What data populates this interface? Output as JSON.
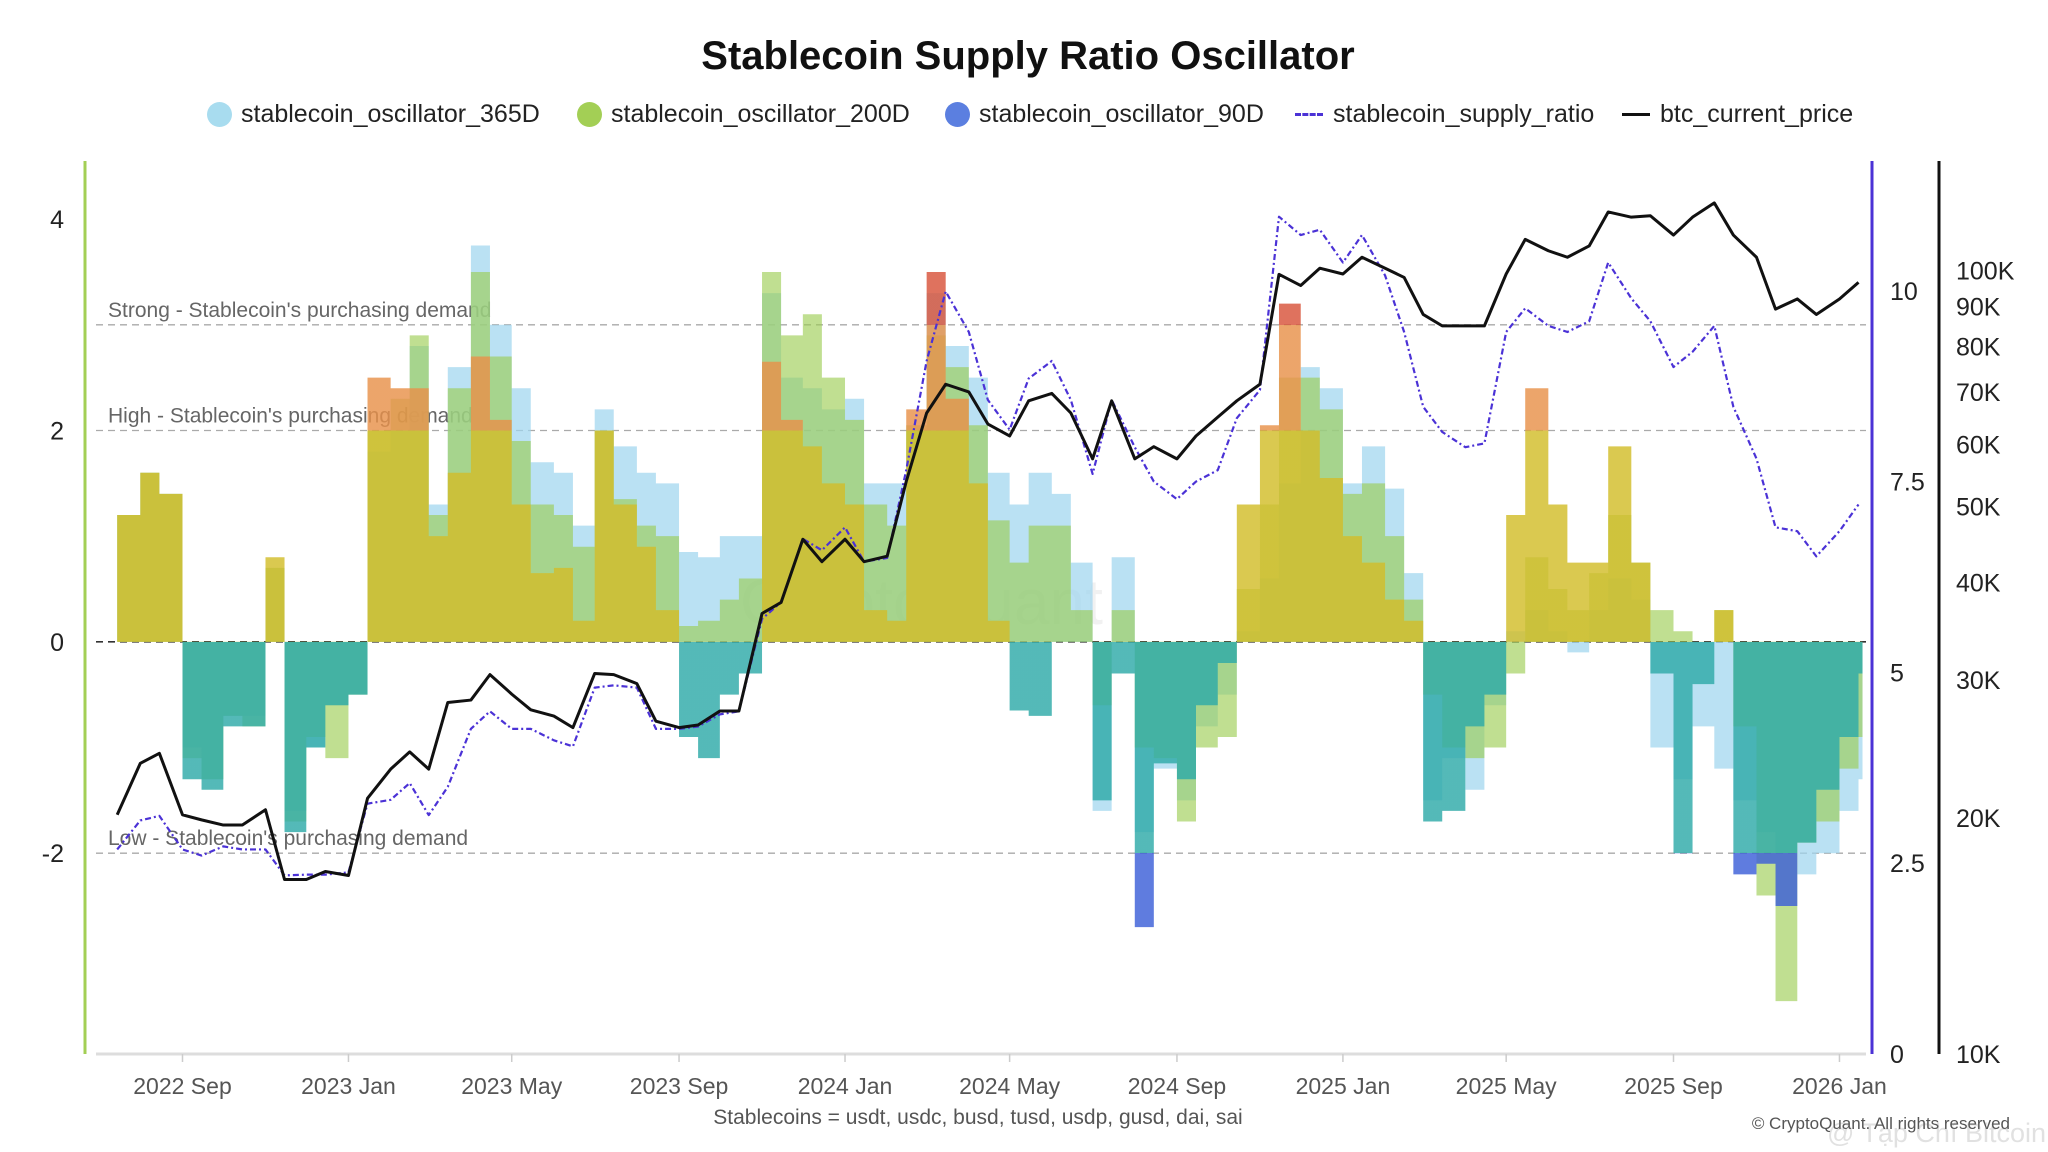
{
  "title": "Stablecoin Supply Ratio Oscillator",
  "legend": [
    {
      "label": "stablecoin_oscillator_365D",
      "marker": "dot",
      "color": "#a8dcef"
    },
    {
      "label": "stablecoin_oscillator_200D",
      "marker": "dot",
      "color": "#a3cf55"
    },
    {
      "label": "stablecoin_oscillator_90D",
      "marker": "dot",
      "color": "#5b7fe0"
    },
    {
      "label": "stablecoin_supply_ratio",
      "marker": "dash-dot-line",
      "color": "#4b32d6"
    },
    {
      "label": "btc_current_price",
      "marker": "line",
      "color": "#111111"
    }
  ],
  "footnote": "Stablecoins = usdt, usdc, busd, tusd, usdp, gusd, dai, sai",
  "copyright": "© CryptoQuant. All rights reserved",
  "watermarks": [
    "CryptoQuant",
    "@ Tạp Chí Bitcoin"
  ],
  "chart_data": {
    "type": "area",
    "title": "Stablecoin Supply Ratio Oscillator",
    "legend_position": "top",
    "grid": false,
    "x": [
      "2022-07-15",
      "2022-08-01",
      "2022-08-15",
      "2022-09-01",
      "2022-09-15",
      "2022-10-01",
      "2022-10-15",
      "2022-11-01",
      "2022-11-15",
      "2022-12-01",
      "2022-12-15",
      "2023-01-01",
      "2023-01-15",
      "2023-02-01",
      "2023-02-15",
      "2023-03-01",
      "2023-03-15",
      "2023-04-01",
      "2023-04-15",
      "2023-05-01",
      "2023-05-15",
      "2023-06-01",
      "2023-06-15",
      "2023-07-01",
      "2023-07-15",
      "2023-08-01",
      "2023-08-15",
      "2023-09-01",
      "2023-09-15",
      "2023-10-01",
      "2023-10-15",
      "2023-11-01",
      "2023-11-15",
      "2023-12-01",
      "2023-12-15",
      "2024-01-01",
      "2024-01-15",
      "2024-02-01",
      "2024-02-15",
      "2024-03-01",
      "2024-03-15",
      "2024-04-01",
      "2024-04-15",
      "2024-05-01",
      "2024-05-15",
      "2024-06-01",
      "2024-06-15",
      "2024-07-01",
      "2024-07-15",
      "2024-08-01",
      "2024-08-15",
      "2024-09-01",
      "2024-09-15",
      "2024-10-01",
      "2024-10-15",
      "2024-11-01",
      "2024-11-15",
      "2024-12-01",
      "2024-12-15",
      "2025-01-01",
      "2025-01-15",
      "2025-02-01",
      "2025-02-15",
      "2025-03-01",
      "2025-03-15",
      "2025-04-01",
      "2025-04-15",
      "2025-05-01",
      "2025-05-15",
      "2025-06-01",
      "2025-06-15",
      "2025-07-01",
      "2025-07-15",
      "2025-08-01",
      "2025-08-15",
      "2025-09-01",
      "2025-09-15",
      "2025-10-01",
      "2025-10-15",
      "2025-11-01",
      "2025-11-15",
      "2025-12-01",
      "2025-12-15",
      "2026-01-01",
      "2026-01-15"
    ],
    "x_ticks": [
      {
        "label": "2022 Sep",
        "date": "2022-09-01"
      },
      {
        "label": "2023 Jan",
        "date": "2023-01-01"
      },
      {
        "label": "2023 May",
        "date": "2023-05-01"
      },
      {
        "label": "2023 Sep",
        "date": "2023-09-01"
      },
      {
        "label": "2024 Jan",
        "date": "2024-01-01"
      },
      {
        "label": "2024 May",
        "date": "2024-05-01"
      },
      {
        "label": "2024 Sep",
        "date": "2024-09-01"
      },
      {
        "label": "2025 Jan",
        "date": "2025-01-01"
      },
      {
        "label": "2025 May",
        "date": "2025-05-01"
      },
      {
        "label": "2025 Sep",
        "date": "2025-09-01"
      },
      {
        "label": "2026 Jan",
        "date": "2026-01-01"
      }
    ],
    "y_axes": {
      "oscillator": {
        "position": "left",
        "range": [
          -3.9,
          4.55
        ],
        "ticks": [
          {
            "value": 4,
            "label": "4"
          },
          {
            "value": 2,
            "label": "2"
          },
          {
            "value": 0,
            "label": "0"
          },
          {
            "value": -2,
            "label": "-2"
          }
        ],
        "color": "#a3cf55"
      },
      "ratio": {
        "position": "right",
        "range": [
          0,
          11.7
        ],
        "ticks": [
          {
            "value": 10,
            "label": "10"
          },
          {
            "value": 7.5,
            "label": "7.5"
          },
          {
            "value": 5,
            "label": "5"
          },
          {
            "value": 2.5,
            "label": "2.5"
          },
          {
            "value": 0,
            "label": "0"
          }
        ],
        "color": "#4b32d6"
      },
      "btc": {
        "position": "far-right",
        "scale": "log",
        "range": [
          10000,
          138000
        ],
        "ticks": [
          {
            "value": 100000,
            "label": "100K"
          },
          {
            "value": 90000,
            "label": "90K"
          },
          {
            "value": 80000,
            "label": "80K"
          },
          {
            "value": 70000,
            "label": "70K"
          },
          {
            "value": 60000,
            "label": "60K"
          },
          {
            "value": 50000,
            "label": "50K"
          },
          {
            "value": 40000,
            "label": "40K"
          },
          {
            "value": 30000,
            "label": "30K"
          },
          {
            "value": 20000,
            "label": "20K"
          },
          {
            "value": 10000,
            "label": "10K"
          }
        ],
        "color": "#111111"
      }
    },
    "reference_lines": [
      {
        "value": 3,
        "label": "Strong - Stablecoin's purchasing demand"
      },
      {
        "value": 2,
        "label": "High - Stablecoin's purchasing demand"
      },
      {
        "value": 0,
        "label": ""
      },
      {
        "value": -2,
        "label": "Low - Stablecoin's purchasing demand"
      }
    ],
    "series": [
      {
        "name": "stablecoin_oscillator_365D",
        "axis": "oscillator",
        "kind": "area",
        "color": "#a8dcef",
        "values": [
          1.2,
          1.6,
          1.4,
          -1.0,
          -1.3,
          -0.7,
          -0.7,
          0.7,
          -1.6,
          -1.0,
          -0.6,
          -0.5,
          1.8,
          2.0,
          2.8,
          1.3,
          2.6,
          3.75,
          3.0,
          2.4,
          1.7,
          1.6,
          1.1,
          2.2,
          1.85,
          1.6,
          1.5,
          0.85,
          0.8,
          1.0,
          1.0,
          3.3,
          2.5,
          2.4,
          2.2,
          2.3,
          1.5,
          1.5,
          2.0,
          3.3,
          2.8,
          2.5,
          1.6,
          1.3,
          1.6,
          1.4,
          0.75,
          -1.6,
          0.8,
          -1.8,
          -1.2,
          -1.5,
          -0.8,
          -0.5,
          0.1,
          0.6,
          1.5,
          2.6,
          2.4,
          1.5,
          1.85,
          1.45,
          0.65,
          -1.5,
          -1.1,
          -1.4,
          -0.6,
          0.1,
          0.3,
          0.1,
          -0.1,
          0.3,
          0.6,
          0.4,
          -1.0,
          -1.3,
          -0.8,
          -1.2,
          -1.5,
          -1.8,
          -2.0,
          -2.2,
          -2.0,
          -1.6,
          -1.3
        ]
      },
      {
        "name": "stablecoin_oscillator_200D",
        "axis": "oscillator",
        "kind": "area",
        "color": "#a3cf55",
        "values": [
          1.2,
          1.6,
          1.4,
          -1.1,
          -1.3,
          -0.7,
          -0.8,
          0.7,
          -1.7,
          -0.9,
          -1.1,
          -0.5,
          2.0,
          2.3,
          2.9,
          1.2,
          2.4,
          3.5,
          2.7,
          1.9,
          1.3,
          1.2,
          0.9,
          2.0,
          1.35,
          1.1,
          1.0,
          0.15,
          0.2,
          0.4,
          0.6,
          3.5,
          2.9,
          3.1,
          2.5,
          2.1,
          1.3,
          1.1,
          2.05,
          2.9,
          2.6,
          2.05,
          1.15,
          0.75,
          1.1,
          1.1,
          0.3,
          -0.6,
          0.3,
          -1.0,
          -1.1,
          -1.7,
          -1.0,
          -0.9,
          0.5,
          1.3,
          2.5,
          2.5,
          2.2,
          1.4,
          1.5,
          1.0,
          0.4,
          -0.5,
          -1.0,
          -1.1,
          -1.0,
          -0.3,
          0.8,
          0.5,
          0.3,
          0.65,
          1.2,
          0.75,
          0.3,
          0.1,
          0.0,
          0.3,
          -0.8,
          -2.4,
          -3.4,
          -1.9,
          -1.7,
          -1.2,
          -0.9
        ]
      },
      {
        "name": "stablecoin_oscillator_90D",
        "axis": "oscillator",
        "kind": "area",
        "color": "#5b7fe0",
        "values": [
          1.2,
          1.6,
          1.4,
          -1.3,
          -1.4,
          -0.8,
          -0.8,
          0.8,
          -1.8,
          -1.0,
          -0.6,
          -0.5,
          2.5,
          2.4,
          2.4,
          1.0,
          1.6,
          2.7,
          2.1,
          1.3,
          0.65,
          0.7,
          0.2,
          2.0,
          1.3,
          0.9,
          0.3,
          -0.9,
          -1.1,
          -0.5,
          -0.3,
          2.65,
          2.1,
          1.85,
          1.5,
          1.3,
          0.3,
          0.2,
          2.2,
          3.5,
          2.3,
          1.5,
          0.2,
          -0.65,
          -0.7,
          0.0,
          0.0,
          -1.5,
          -0.3,
          -2.7,
          -1.15,
          -1.3,
          -0.6,
          -0.2,
          1.3,
          2.05,
          3.2,
          2.0,
          1.55,
          1.0,
          0.75,
          0.4,
          0.2,
          -1.7,
          -1.6,
          -0.8,
          -0.5,
          1.2,
          2.4,
          1.3,
          0.75,
          0.75,
          1.85,
          0.75,
          -0.3,
          -2.0,
          -0.4,
          0.3,
          -2.2,
          -2.1,
          -2.5,
          -1.9,
          -1.4,
          -0.9,
          -0.3
        ]
      },
      {
        "name": "stablecoin_supply_ratio",
        "axis": "ratio",
        "kind": "line",
        "style": "dash-dot",
        "color": "#4b32d6",
        "values": [
          2.68,
          3.06,
          3.12,
          2.68,
          2.6,
          2.72,
          2.68,
          2.68,
          2.34,
          2.35,
          2.35,
          2.38,
          3.28,
          3.33,
          3.55,
          3.13,
          3.5,
          4.26,
          4.49,
          4.26,
          4.26,
          4.11,
          4.03,
          4.8,
          4.83,
          4.8,
          4.26,
          4.26,
          4.29,
          4.45,
          4.49,
          5.7,
          5.92,
          6.75,
          6.6,
          6.9,
          6.45,
          6.5,
          7.65,
          9.08,
          9.99,
          9.46,
          8.57,
          8.18,
          8.85,
          9.08,
          8.57,
          7.6,
          8.57,
          7.95,
          7.5,
          7.27,
          7.5,
          7.65,
          8.33,
          8.7,
          10.97,
          10.73,
          10.8,
          10.37,
          10.73,
          10.2,
          9.46,
          8.48,
          8.15,
          7.95,
          8.0,
          9.46,
          9.77,
          9.54,
          9.46,
          9.6,
          10.37,
          9.9,
          9.6,
          9.0,
          9.2,
          9.54,
          8.48,
          7.8,
          6.9,
          6.85,
          6.52,
          6.85,
          7.2
        ]
      },
      {
        "name": "btc_current_price",
        "axis": "btc",
        "kind": "line",
        "color": "#111111",
        "values": [
          20200,
          23500,
          24200,
          20200,
          19900,
          19600,
          19600,
          20500,
          16700,
          16700,
          17100,
          16900,
          21200,
          23100,
          24300,
          23100,
          28100,
          28300,
          30500,
          28800,
          27500,
          27000,
          26100,
          30600,
          30500,
          29700,
          26600,
          26100,
          26300,
          27400,
          27400,
          36500,
          37700,
          45400,
          42500,
          45400,
          42500,
          43200,
          53800,
          65800,
          71600,
          70000,
          63700,
          61500,
          68200,
          69700,
          65800,
          57500,
          68200,
          57500,
          59600,
          57500,
          61500,
          65000,
          68200,
          71600,
          98900,
          95700,
          100700,
          99000,
          104000,
          100700,
          98000,
          87900,
          85000,
          85000,
          85000,
          99000,
          109600,
          106000,
          104000,
          107500,
          118800,
          117000,
          117500,
          111000,
          117000,
          122000,
          111000,
          104000,
          89300,
          92000,
          87900,
          92000,
          96600
        ]
      }
    ]
  }
}
